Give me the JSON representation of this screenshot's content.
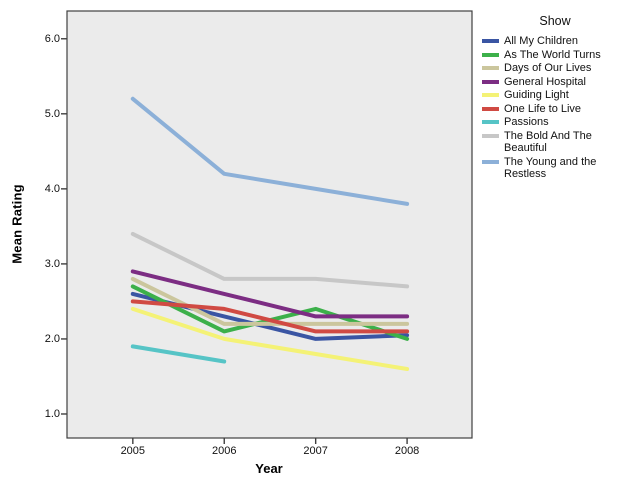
{
  "chart_data": {
    "type": "line",
    "title": "",
    "xlabel": "Year",
    "ylabel": "Mean Rating",
    "legend_title": "Show",
    "legend_position": "right",
    "grid": false,
    "plot_bg": "#ebebeb",
    "axis_color": "#3f3f3f",
    "x_tick_labels": [
      "2005",
      "2006",
      "2007",
      "2008"
    ],
    "x": [
      2005,
      2006,
      2007,
      2008
    ],
    "y_ticks": [
      6.0,
      5.0,
      4.0,
      3.0,
      2.0,
      1.0
    ],
    "y_tick_labels": [
      "6.0",
      "5.0",
      "4.0",
      "3.0",
      "2.0",
      "1.0"
    ],
    "ylim": [
      0.68,
      6.37
    ],
    "xlim": [
      2004.28,
      2008.71
    ],
    "series": [
      {
        "name": "All My Children",
        "color": "#3a55a3",
        "values": [
          2.6,
          2.3,
          2.0,
          2.05
        ]
      },
      {
        "name": "As The World Turns",
        "color": "#3cb04a",
        "values": [
          2.7,
          2.1,
          2.4,
          2.0
        ]
      },
      {
        "name": "Days of Our Lives",
        "color": "#cbc69d",
        "values": [
          2.8,
          2.2,
          2.2,
          2.2
        ]
      },
      {
        "name": "General Hospital",
        "color": "#7c2d83",
        "values": [
          2.9,
          2.6,
          2.3,
          2.3
        ]
      },
      {
        "name": "Guiding Light",
        "color": "#f4f276",
        "values": [
          2.4,
          2.0,
          1.8,
          1.6
        ]
      },
      {
        "name": "One Life to Live",
        "color": "#d04a43",
        "values": [
          2.5,
          2.4,
          2.1,
          2.1
        ]
      },
      {
        "name": "Passions",
        "color": "#56c4c6",
        "values": [
          1.9,
          1.7,
          null,
          null
        ]
      },
      {
        "name": "The Bold And The Beautiful",
        "color": "#c7c7c7",
        "values": [
          3.4,
          2.8,
          2.8,
          2.7
        ]
      },
      {
        "name": "The Young and the Restless",
        "color": "#8cb0d8",
        "values": [
          5.2,
          4.2,
          4.0,
          3.8
        ]
      }
    ]
  }
}
